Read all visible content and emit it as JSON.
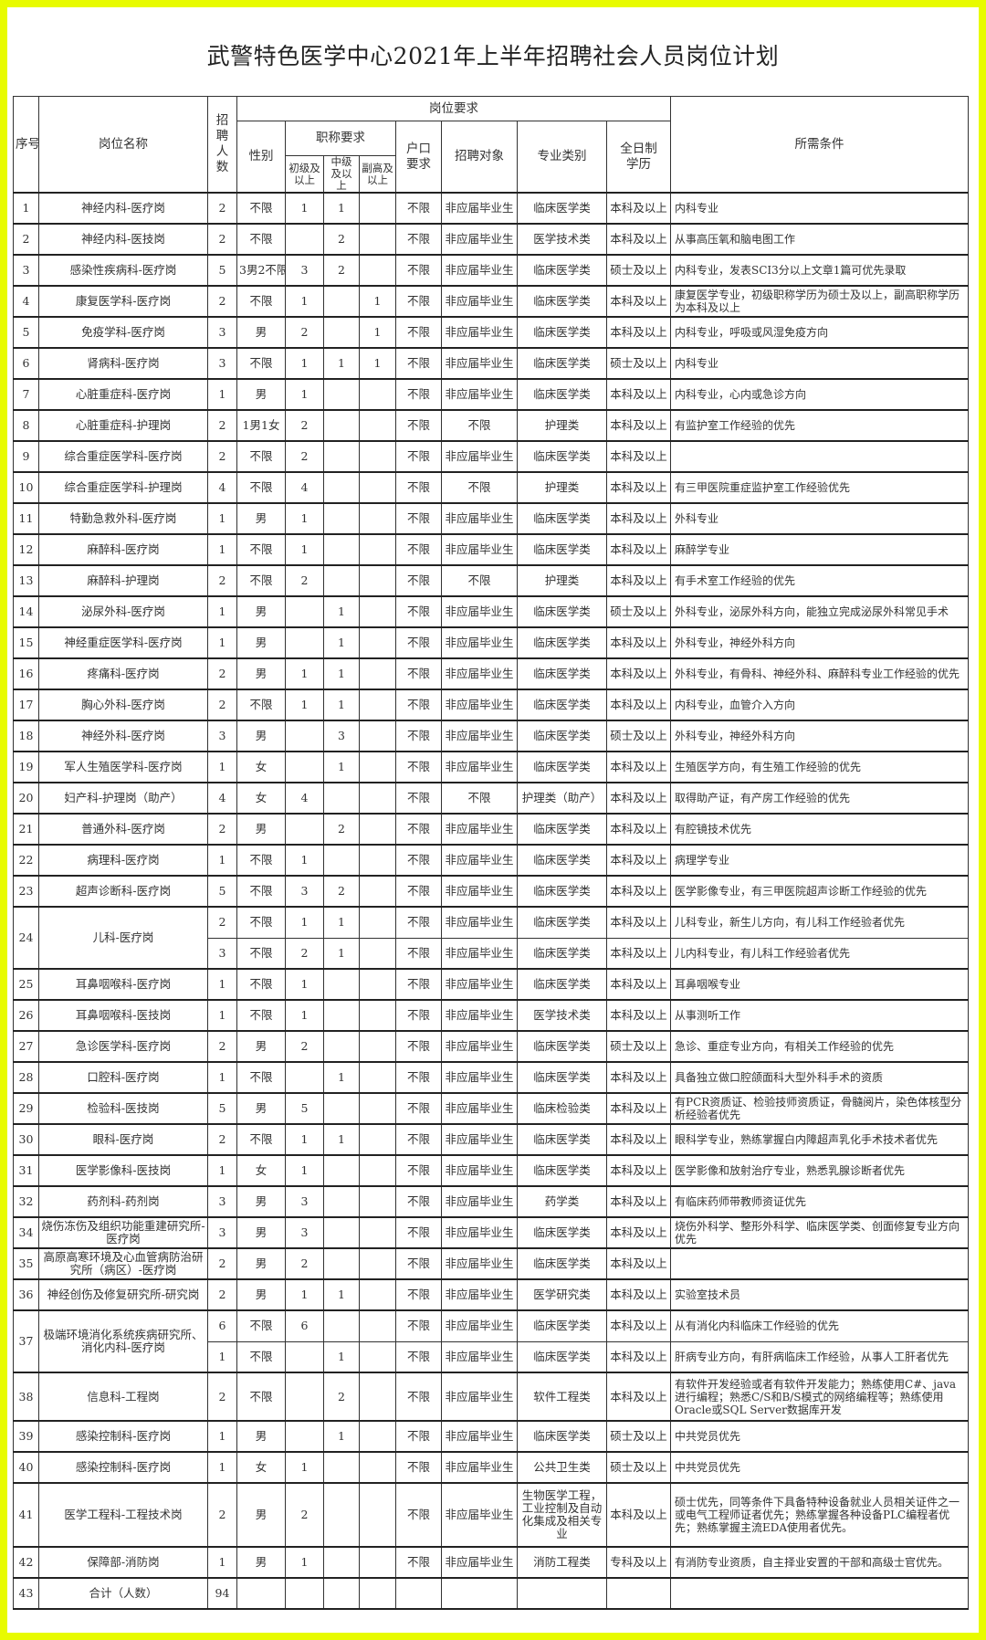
{
  "title": "武警特色医学中心2021年上半年招聘社会人员岗位计划",
  "header": {
    "no": "序号",
    "name": "岗位名称",
    "count": "招聘人数",
    "requirements": "岗位要求",
    "gender": "性别",
    "title_req": "职称要求",
    "junior": "初级及以上",
    "mid": "中级及以上",
    "senior": "副高及以上",
    "hukou": "户口要求",
    "target": "招聘对象",
    "major": "专业类别",
    "edu": "全日制学历",
    "conditions": "所需条件"
  },
  "rows": [
    {
      "no": "1",
      "name": "神经内科-医疗岗",
      "sub": [
        {
          "count": "2",
          "gender": "不限",
          "junior": "1",
          "mid": "1",
          "senior": "",
          "hukou": "不限",
          "target": "非应届毕业生",
          "major": "临床医学类",
          "edu": "本科及以上",
          "cond": "内科专业"
        }
      ]
    },
    {
      "no": "2",
      "name": "神经内科-医技岗",
      "sub": [
        {
          "count": "2",
          "gender": "不限",
          "junior": "",
          "mid": "2",
          "senior": "",
          "hukou": "不限",
          "target": "非应届毕业生",
          "major": "医学技术类",
          "edu": "本科及以上",
          "cond": "从事高压氧和脑电图工作"
        }
      ]
    },
    {
      "no": "3",
      "name": "感染性疾病科-医疗岗",
      "sub": [
        {
          "count": "5",
          "gender": "3男2不限",
          "junior": "3",
          "mid": "2",
          "senior": "",
          "hukou": "不限",
          "target": "非应届毕业生",
          "major": "临床医学类",
          "edu": "硕士及以上",
          "cond": "内科专业，发表SCI3分以上文章1篇可优先录取"
        }
      ]
    },
    {
      "no": "4",
      "name": "康复医学科-医疗岗",
      "sub": [
        {
          "count": "2",
          "gender": "不限",
          "junior": "1",
          "mid": "",
          "senior": "1",
          "hukou": "不限",
          "target": "非应届毕业生",
          "major": "临床医学类",
          "edu": "本科及以上",
          "cond": "康复医学专业，初级职称学历为硕士及以上，副高职称学历为本科及以上"
        }
      ]
    },
    {
      "no": "5",
      "name": "免疫学科-医疗岗",
      "sub": [
        {
          "count": "3",
          "gender": "男",
          "junior": "2",
          "mid": "",
          "senior": "1",
          "hukou": "不限",
          "target": "非应届毕业生",
          "major": "临床医学类",
          "edu": "本科及以上",
          "cond": "内科专业，呼吸或风湿免疫方向"
        }
      ]
    },
    {
      "no": "6",
      "name": "肾病科-医疗岗",
      "sub": [
        {
          "count": "3",
          "gender": "不限",
          "junior": "1",
          "mid": "1",
          "senior": "1",
          "hukou": "不限",
          "target": "非应届毕业生",
          "major": "临床医学类",
          "edu": "硕士及以上",
          "cond": "内科专业"
        }
      ]
    },
    {
      "no": "7",
      "name": "心脏重症科-医疗岗",
      "sub": [
        {
          "count": "1",
          "gender": "男",
          "junior": "1",
          "mid": "",
          "senior": "",
          "hukou": "不限",
          "target": "非应届毕业生",
          "major": "临床医学类",
          "edu": "本科及以上",
          "cond": "内科专业，心内或急诊方向"
        }
      ]
    },
    {
      "no": "8",
      "name": "心脏重症科-护理岗",
      "sub": [
        {
          "count": "2",
          "gender": "1男1女",
          "junior": "2",
          "mid": "",
          "senior": "",
          "hukou": "不限",
          "target": "不限",
          "major": "护理类",
          "edu": "本科及以上",
          "cond": "有监护室工作经验的优先"
        }
      ]
    },
    {
      "no": "9",
      "name": "综合重症医学科-医疗岗",
      "sub": [
        {
          "count": "2",
          "gender": "不限",
          "junior": "2",
          "mid": "",
          "senior": "",
          "hukou": "不限",
          "target": "非应届毕业生",
          "major": "临床医学类",
          "edu": "本科及以上",
          "cond": ""
        }
      ]
    },
    {
      "no": "10",
      "name": "综合重症医学科-护理岗",
      "sub": [
        {
          "count": "4",
          "gender": "不限",
          "junior": "4",
          "mid": "",
          "senior": "",
          "hukou": "不限",
          "target": "不限",
          "major": "护理类",
          "edu": "本科及以上",
          "cond": "有三甲医院重症监护室工作经验优先"
        }
      ]
    },
    {
      "no": "11",
      "name": "特勤急救外科-医疗岗",
      "sub": [
        {
          "count": "1",
          "gender": "男",
          "junior": "1",
          "mid": "",
          "senior": "",
          "hukou": "不限",
          "target": "非应届毕业生",
          "major": "临床医学类",
          "edu": "本科及以上",
          "cond": "外科专业"
        }
      ]
    },
    {
      "no": "12",
      "name": "麻醉科-医疗岗",
      "sub": [
        {
          "count": "1",
          "gender": "不限",
          "junior": "1",
          "mid": "",
          "senior": "",
          "hukou": "不限",
          "target": "非应届毕业生",
          "major": "临床医学类",
          "edu": "本科及以上",
          "cond": "麻醉学专业"
        }
      ]
    },
    {
      "no": "13",
      "name": "麻醉科-护理岗",
      "sub": [
        {
          "count": "2",
          "gender": "不限",
          "junior": "2",
          "mid": "",
          "senior": "",
          "hukou": "不限",
          "target": "不限",
          "major": "护理类",
          "edu": "本科及以上",
          "cond": "有手术室工作经验的优先"
        }
      ]
    },
    {
      "no": "14",
      "name": "泌尿外科-医疗岗",
      "sub": [
        {
          "count": "1",
          "gender": "男",
          "junior": "",
          "mid": "1",
          "senior": "",
          "hukou": "不限",
          "target": "非应届毕业生",
          "major": "临床医学类",
          "edu": "硕士及以上",
          "cond": "外科专业，泌尿外科方向，能独立完成泌尿外科常见手术"
        }
      ]
    },
    {
      "no": "15",
      "name": "神经重症医学科-医疗岗",
      "sub": [
        {
          "count": "1",
          "gender": "男",
          "junior": "",
          "mid": "1",
          "senior": "",
          "hukou": "不限",
          "target": "非应届毕业生",
          "major": "临床医学类",
          "edu": "本科及以上",
          "cond": "外科专业，神经外科方向"
        }
      ]
    },
    {
      "no": "16",
      "name": "疼痛科-医疗岗",
      "sub": [
        {
          "count": "2",
          "gender": "男",
          "junior": "1",
          "mid": "1",
          "senior": "",
          "hukou": "不限",
          "target": "非应届毕业生",
          "major": "临床医学类",
          "edu": "本科及以上",
          "cond": "外科专业，有骨科、神经外科、麻醉科专业工作经验的优先"
        }
      ]
    },
    {
      "no": "17",
      "name": "胸心外科-医疗岗",
      "sub": [
        {
          "count": "2",
          "gender": "不限",
          "junior": "1",
          "mid": "1",
          "senior": "",
          "hukou": "不限",
          "target": "非应届毕业生",
          "major": "临床医学类",
          "edu": "本科及以上",
          "cond": "内科专业，血管介入方向"
        }
      ]
    },
    {
      "no": "18",
      "name": "神经外科-医疗岗",
      "sub": [
        {
          "count": "3",
          "gender": "男",
          "junior": "",
          "mid": "3",
          "senior": "",
          "hukou": "不限",
          "target": "非应届毕业生",
          "major": "临床医学类",
          "edu": "硕士及以上",
          "cond": "外科专业，神经外科方向"
        }
      ]
    },
    {
      "no": "19",
      "name": "军人生殖医学科-医疗岗",
      "sub": [
        {
          "count": "1",
          "gender": "女",
          "junior": "",
          "mid": "1",
          "senior": "",
          "hukou": "不限",
          "target": "非应届毕业生",
          "major": "临床医学类",
          "edu": "本科及以上",
          "cond": "生殖医学方向，有生殖工作经验的优先"
        }
      ]
    },
    {
      "no": "20",
      "name": "妇产科-护理岗（助产）",
      "sub": [
        {
          "count": "4",
          "gender": "女",
          "junior": "4",
          "mid": "",
          "senior": "",
          "hukou": "不限",
          "target": "不限",
          "major": "护理类（助产）",
          "edu": "本科及以上",
          "cond": "取得助产证，有产房工作经验的优先"
        }
      ]
    },
    {
      "no": "21",
      "name": "普通外科-医疗岗",
      "sub": [
        {
          "count": "2",
          "gender": "男",
          "junior": "",
          "mid": "2",
          "senior": "",
          "hukou": "不限",
          "target": "非应届毕业生",
          "major": "临床医学类",
          "edu": "本科及以上",
          "cond": "有腔镜技术优先"
        }
      ]
    },
    {
      "no": "22",
      "name": "病理科-医疗岗",
      "sub": [
        {
          "count": "1",
          "gender": "不限",
          "junior": "1",
          "mid": "",
          "senior": "",
          "hukou": "不限",
          "target": "非应届毕业生",
          "major": "临床医学类",
          "edu": "本科及以上",
          "cond": "病理学专业"
        }
      ]
    },
    {
      "no": "23",
      "name": "超声诊断科-医疗岗",
      "sub": [
        {
          "count": "5",
          "gender": "不限",
          "junior": "3",
          "mid": "2",
          "senior": "",
          "hukou": "不限",
          "target": "非应届毕业生",
          "major": "临床医学类",
          "edu": "本科及以上",
          "cond": "医学影像专业，有三甲医院超声诊断工作经验的优先"
        }
      ]
    },
    {
      "no": "24",
      "name": "儿科-医疗岗",
      "sub": [
        {
          "count": "2",
          "gender": "不限",
          "junior": "1",
          "mid": "1",
          "senior": "",
          "hukou": "不限",
          "target": "非应届毕业生",
          "major": "临床医学类",
          "edu": "本科及以上",
          "cond": "儿科专业，新生儿方向，有儿科工作经验者优先"
        },
        {
          "count": "3",
          "gender": "不限",
          "junior": "2",
          "mid": "1",
          "senior": "",
          "hukou": "不限",
          "target": "非应届毕业生",
          "major": "临床医学类",
          "edu": "本科及以上",
          "cond": "儿内科专业，有儿科工作经验者优先"
        }
      ]
    },
    {
      "no": "25",
      "name": "耳鼻咽喉科-医疗岗",
      "sub": [
        {
          "count": "1",
          "gender": "不限",
          "junior": "1",
          "mid": "",
          "senior": "",
          "hukou": "不限",
          "target": "非应届毕业生",
          "major": "临床医学类",
          "edu": "本科及以上",
          "cond": "耳鼻咽喉专业"
        }
      ]
    },
    {
      "no": "26",
      "name": "耳鼻咽喉科-医技岗",
      "sub": [
        {
          "count": "1",
          "gender": "不限",
          "junior": "1",
          "mid": "",
          "senior": "",
          "hukou": "不限",
          "target": "非应届毕业生",
          "major": "医学技术类",
          "edu": "本科及以上",
          "cond": "从事测听工作"
        }
      ]
    },
    {
      "no": "27",
      "name": "急诊医学科-医疗岗",
      "sub": [
        {
          "count": "2",
          "gender": "男",
          "junior": "2",
          "mid": "",
          "senior": "",
          "hukou": "不限",
          "target": "非应届毕业生",
          "major": "临床医学类",
          "edu": "硕士及以上",
          "cond": "急诊、重症专业方向，有相关工作经验的优先"
        }
      ]
    },
    {
      "no": "28",
      "name": "口腔科-医疗岗",
      "sub": [
        {
          "count": "1",
          "gender": "不限",
          "junior": "",
          "mid": "1",
          "senior": "",
          "hukou": "不限",
          "target": "非应届毕业生",
          "major": "临床医学类",
          "edu": "本科及以上",
          "cond": "具备独立做口腔颌面科大型外科手术的资质"
        }
      ]
    },
    {
      "no": "29",
      "name": "检验科-医技岗",
      "sub": [
        {
          "count": "5",
          "gender": "男",
          "junior": "5",
          "mid": "",
          "senior": "",
          "hukou": "不限",
          "target": "非应届毕业生",
          "major": "临床检验类",
          "edu": "本科及以上",
          "cond": "有PCR资质证、检验技师资质证，骨髓阅片，染色体核型分析经验者优先"
        }
      ]
    },
    {
      "no": "30",
      "name": "眼科-医疗岗",
      "sub": [
        {
          "count": "2",
          "gender": "不限",
          "junior": "1",
          "mid": "1",
          "senior": "",
          "hukou": "不限",
          "target": "非应届毕业生",
          "major": "临床医学类",
          "edu": "本科及以上",
          "cond": "眼科学专业，熟练掌握白内障超声乳化手术技术者优先"
        }
      ]
    },
    {
      "no": "31",
      "name": "医学影像科-医技岗",
      "sub": [
        {
          "count": "1",
          "gender": "女",
          "junior": "1",
          "mid": "",
          "senior": "",
          "hukou": "不限",
          "target": "非应届毕业生",
          "major": "临床医学类",
          "edu": "本科及以上",
          "cond": "医学影像和放射治疗专业，熟悉乳腺诊断者优先"
        }
      ]
    },
    {
      "no": "32",
      "name": "药剂科-药剂岗",
      "sub": [
        {
          "count": "3",
          "gender": "男",
          "junior": "3",
          "mid": "",
          "senior": "",
          "hukou": "不限",
          "target": "非应届毕业生",
          "major": "药学类",
          "edu": "本科及以上",
          "cond": "有临床药师带教师资证优先"
        }
      ]
    },
    {
      "no": "34",
      "name": "烧伤冻伤及组织功能重建研究所-医疗岗",
      "sub": [
        {
          "count": "3",
          "gender": "男",
          "junior": "3",
          "mid": "",
          "senior": "",
          "hukou": "不限",
          "target": "非应届毕业生",
          "major": "临床医学类",
          "edu": "本科及以上",
          "cond": "烧伤外科学、整形外科学、临床医学类、创面修复专业方向优先"
        }
      ]
    },
    {
      "no": "35",
      "name": "高原高寒环境及心血管病防治研究所（病区）-医疗岗",
      "sub": [
        {
          "count": "2",
          "gender": "男",
          "junior": "2",
          "mid": "",
          "senior": "",
          "hukou": "不限",
          "target": "非应届毕业生",
          "major": "临床医学类",
          "edu": "本科及以上",
          "cond": ""
        }
      ]
    },
    {
      "no": "36",
      "name": "神经创伤及修复研究所-研究岗",
      "sub": [
        {
          "count": "2",
          "gender": "男",
          "junior": "1",
          "mid": "1",
          "senior": "",
          "hukou": "不限",
          "target": "非应届毕业生",
          "major": "医学研究类",
          "edu": "本科及以上",
          "cond": "实验室技术员"
        }
      ]
    },
    {
      "no": "37",
      "name": "极端环境消化系统疾病研究所、消化内科-医疗岗",
      "sub": [
        {
          "count": "6",
          "gender": "不限",
          "junior": "6",
          "mid": "",
          "senior": "",
          "hukou": "不限",
          "target": "非应届毕业生",
          "major": "临床医学类",
          "edu": "本科及以上",
          "cond": "从有消化内科临床工作经验的优先"
        },
        {
          "count": "1",
          "gender": "不限",
          "junior": "",
          "mid": "1",
          "senior": "",
          "hukou": "不限",
          "target": "非应届毕业生",
          "major": "临床医学类",
          "edu": "本科及以上",
          "cond": "肝病专业方向，有肝病临床工作经验，从事人工肝者优先"
        }
      ]
    },
    {
      "no": "38",
      "name": "信息科-工程岗",
      "tall": "tall2",
      "sub": [
        {
          "count": "2",
          "gender": "不限",
          "junior": "",
          "mid": "2",
          "senior": "",
          "hukou": "不限",
          "target": "非应届毕业生",
          "major": "软件工程类",
          "edu": "本科及以上",
          "cond": "有软件开发经验或者有软件开发能力；熟练使用C#、java进行编程；熟悉C/S和B/S模式的网络编程等；熟练使用Oracle或SQL Server数据库开发"
        }
      ]
    },
    {
      "no": "39",
      "name": "感染控制科-医疗岗",
      "sub": [
        {
          "count": "1",
          "gender": "男",
          "junior": "",
          "mid": "1",
          "senior": "",
          "hukou": "不限",
          "target": "非应届毕业生",
          "major": "临床医学类",
          "edu": "硕士及以上",
          "cond": "中共党员优先"
        }
      ]
    },
    {
      "no": "40",
      "name": "感染控制科-医疗岗",
      "sub": [
        {
          "count": "1",
          "gender": "女",
          "junior": "1",
          "mid": "",
          "senior": "",
          "hukou": "不限",
          "target": "非应届毕业生",
          "major": "公共卫生类",
          "edu": "硕士及以上",
          "cond": "中共党员优先"
        }
      ]
    },
    {
      "no": "41",
      "name": "医学工程科-工程技术岗",
      "tall": "tall3",
      "sub": [
        {
          "count": "2",
          "gender": "男",
          "junior": "2",
          "mid": "",
          "senior": "",
          "hukou": "不限",
          "target": "非应届毕业生",
          "major": "生物医学工程，工业控制及自动化集成及相关专业",
          "edu": "本科及以上",
          "cond": "硕士优先，同等条件下具备特种设备就业人员相关证件之一或电气工程师证者优先；熟练掌握各种设备PLC编程者优先；熟练掌握主流EDA使用者优先。"
        }
      ]
    },
    {
      "no": "42",
      "name": "保障部-消防岗",
      "sub": [
        {
          "count": "1",
          "gender": "男",
          "junior": "1",
          "mid": "",
          "senior": "",
          "hukou": "不限",
          "target": "非应届毕业生",
          "major": "消防工程类",
          "edu": "专科及以上",
          "cond": "有消防专业资质，自主择业安置的干部和高级士官优先。"
        }
      ]
    }
  ],
  "total": {
    "no": "43",
    "label": "合计（人数）",
    "count": "94"
  }
}
